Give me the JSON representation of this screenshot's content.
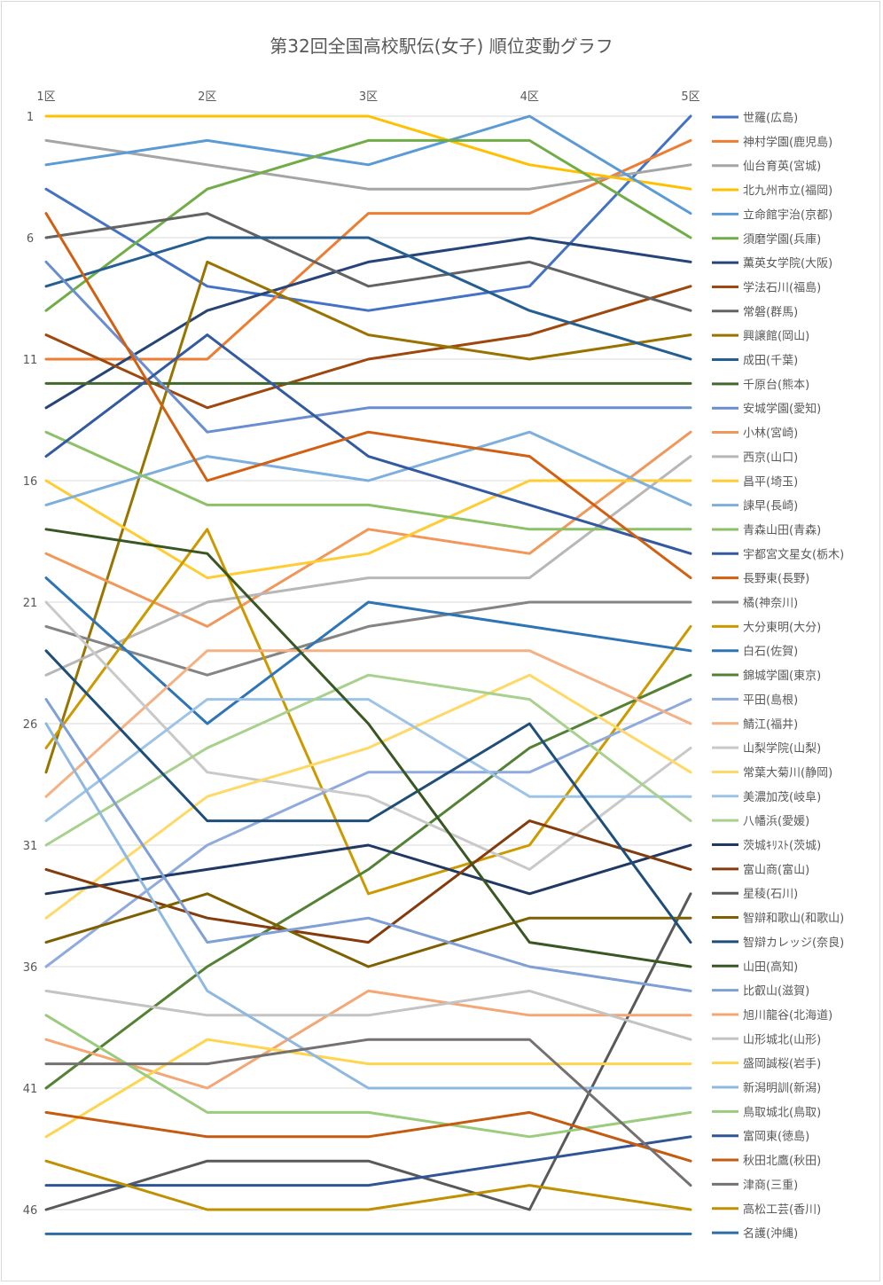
{
  "chart_data": {
    "type": "line",
    "title": "第32回全国高校駅伝(女子) 順位変動グラフ",
    "xlabel": "",
    "ylabel": "",
    "categories": [
      "1区",
      "2区",
      "3区",
      "4区",
      "5区"
    ],
    "ylim": [
      1,
      47
    ],
    "y_reversed": true,
    "yticks": [
      1,
      6,
      11,
      16,
      21,
      26,
      31,
      36,
      41,
      46
    ],
    "grid": true,
    "legend": "right",
    "series": [
      {
        "name": "世羅(広島)",
        "color": "#4472c4",
        "values": [
          4,
          8,
          9,
          8,
          1
        ]
      },
      {
        "name": "神村学園(鹿児島)",
        "color": "#ed7d31",
        "values": [
          11,
          11,
          5,
          5,
          2
        ]
      },
      {
        "name": "仙台育英(宮城)",
        "color": "#a5a5a5",
        "values": [
          2,
          3,
          4,
          4,
          3
        ]
      },
      {
        "name": "北九州市立(福岡)",
        "color": "#ffc000",
        "values": [
          1,
          1,
          1,
          3,
          4
        ]
      },
      {
        "name": "立命館宇治(京都)",
        "color": "#5b9bd5",
        "values": [
          3,
          2,
          3,
          1,
          5
        ]
      },
      {
        "name": "須磨学園(兵庫)",
        "color": "#70ad47",
        "values": [
          9,
          4,
          2,
          2,
          6
        ]
      },
      {
        "name": "薫英女学院(大阪)",
        "color": "#264478",
        "values": [
          13,
          9,
          7,
          6,
          7
        ]
      },
      {
        "name": "学法石川(福島)",
        "color": "#9e480e",
        "values": [
          10,
          13,
          11,
          10,
          8
        ]
      },
      {
        "name": "常磐(群馬)",
        "color": "#636363",
        "values": [
          6,
          5,
          8,
          7,
          9
        ]
      },
      {
        "name": "興譲館(岡山)",
        "color": "#997300",
        "values": [
          28,
          7,
          10,
          11,
          10
        ]
      },
      {
        "name": "成田(千葉)",
        "color": "#255e91",
        "values": [
          8,
          6,
          6,
          9,
          11
        ]
      },
      {
        "name": "千原台(熊本)",
        "color": "#43682b",
        "values": [
          12,
          12,
          12,
          12,
          12
        ]
      },
      {
        "name": "安城学園(愛知)",
        "color": "#698ed0",
        "values": [
          7,
          14,
          13,
          13,
          13
        ]
      },
      {
        "name": "小林(宮崎)",
        "color": "#f1975a",
        "values": [
          19,
          22,
          18,
          19,
          14
        ]
      },
      {
        "name": "西京(山口)",
        "color": "#b7b7b7",
        "values": [
          24,
          21,
          20,
          20,
          15
        ]
      },
      {
        "name": "昌平(埼玉)",
        "color": "#ffcd33",
        "values": [
          16,
          20,
          19,
          16,
          16
        ]
      },
      {
        "name": "諫早(長崎)",
        "color": "#7cafdd",
        "values": [
          17,
          15,
          16,
          14,
          17
        ]
      },
      {
        "name": "青森山田(青森)",
        "color": "#8cc168",
        "values": [
          14,
          17,
          17,
          18,
          18
        ]
      },
      {
        "name": "宇都宮文星女(栃木)",
        "color": "#335aa1",
        "values": [
          15,
          10,
          15,
          17,
          19
        ]
      },
      {
        "name": "長野東(長野)",
        "color": "#d26012",
        "values": [
          5,
          16,
          14,
          15,
          20
        ]
      },
      {
        "name": "橘(神奈川)",
        "color": "#848484",
        "values": [
          22,
          24,
          22,
          21,
          21
        ]
      },
      {
        "name": "大分東明(大分)",
        "color": "#cc9a00",
        "values": [
          27,
          18,
          33,
          31,
          22
        ]
      },
      {
        "name": "白石(佐賀)",
        "color": "#2e75b6",
        "values": [
          20,
          26,
          21,
          22,
          23
        ]
      },
      {
        "name": "錦城学園(東京)",
        "color": "#548235",
        "values": [
          41,
          36,
          32,
          27,
          24
        ]
      },
      {
        "name": "平田(島根)",
        "color": "#8faadc",
        "values": [
          36,
          31,
          28,
          28,
          25
        ]
      },
      {
        "name": "鯖江(福井)",
        "color": "#f4b183",
        "values": [
          29,
          23,
          23,
          23,
          26
        ]
      },
      {
        "name": "山梨学院(山梨)",
        "color": "#c9c9c9",
        "values": [
          21,
          28,
          29,
          32,
          27
        ]
      },
      {
        "name": "常葉大菊川(静岡)",
        "color": "#ffd966",
        "values": [
          34,
          29,
          27,
          24,
          28
        ]
      },
      {
        "name": "美濃加茂(岐阜)",
        "color": "#9dc3e6",
        "values": [
          30,
          25,
          25,
          29,
          29
        ]
      },
      {
        "name": "八幡浜(愛媛)",
        "color": "#a9d18e",
        "values": [
          31,
          27,
          24,
          25,
          30
        ]
      },
      {
        "name": "茨城ｷﾘｽﾄ(茨城)",
        "color": "#203864",
        "values": [
          33,
          32,
          31,
          33,
          31
        ]
      },
      {
        "name": "富山商(富山)",
        "color": "#843c0c",
        "values": [
          32,
          34,
          35,
          30,
          32
        ]
      },
      {
        "name": "星稜(石川)",
        "color": "#595959",
        "values": [
          46,
          44,
          44,
          46,
          33
        ]
      },
      {
        "name": "智辯和歌山(和歌山)",
        "color": "#7f6000",
        "values": [
          35,
          33,
          36,
          34,
          34
        ]
      },
      {
        "name": "智辯カレッジ(奈良)",
        "color": "#1f4e79",
        "values": [
          23,
          30,
          30,
          26,
          35
        ]
      },
      {
        "name": "山田(高知)",
        "color": "#385723",
        "values": [
          18,
          19,
          26,
          35,
          36
        ]
      },
      {
        "name": "比叡山(滋賀)",
        "color": "#7f9fd5",
        "values": [
          25,
          35,
          34,
          36,
          37
        ]
      },
      {
        "name": "旭川龍谷(北海道)",
        "color": "#f4a674",
        "values": [
          39,
          41,
          37,
          38,
          38
        ]
      },
      {
        "name": "山形城北(山形)",
        "color": "#c3c3c3",
        "values": [
          37,
          38,
          38,
          37,
          39
        ]
      },
      {
        "name": "盛岡誠桜(岩手)",
        "color": "#ffd54f",
        "values": [
          43,
          39,
          40,
          40,
          40
        ]
      },
      {
        "name": "新潟明訓(新潟)",
        "color": "#8fb8e0",
        "values": [
          26,
          37,
          41,
          41,
          41
        ]
      },
      {
        "name": "鳥取城北(鳥取)",
        "color": "#9bcb7c",
        "values": [
          38,
          42,
          42,
          43,
          42
        ]
      },
      {
        "name": "富岡東(徳島)",
        "color": "#2f5597",
        "values": [
          45,
          45,
          45,
          44,
          43
        ]
      },
      {
        "name": "秋田北鷹(秋田)",
        "color": "#c55a11",
        "values": [
          42,
          43,
          43,
          42,
          44
        ]
      },
      {
        "name": "津商(三重)",
        "color": "#767171",
        "values": [
          40,
          40,
          39,
          39,
          45
        ]
      },
      {
        "name": "高松工芸(香川)",
        "color": "#bf9000",
        "values": [
          44,
          46,
          46,
          45,
          46
        ]
      },
      {
        "name": "名護(沖縄)",
        "color": "#2e6da4",
        "values": [
          47,
          47,
          47,
          47,
          47
        ]
      }
    ]
  }
}
